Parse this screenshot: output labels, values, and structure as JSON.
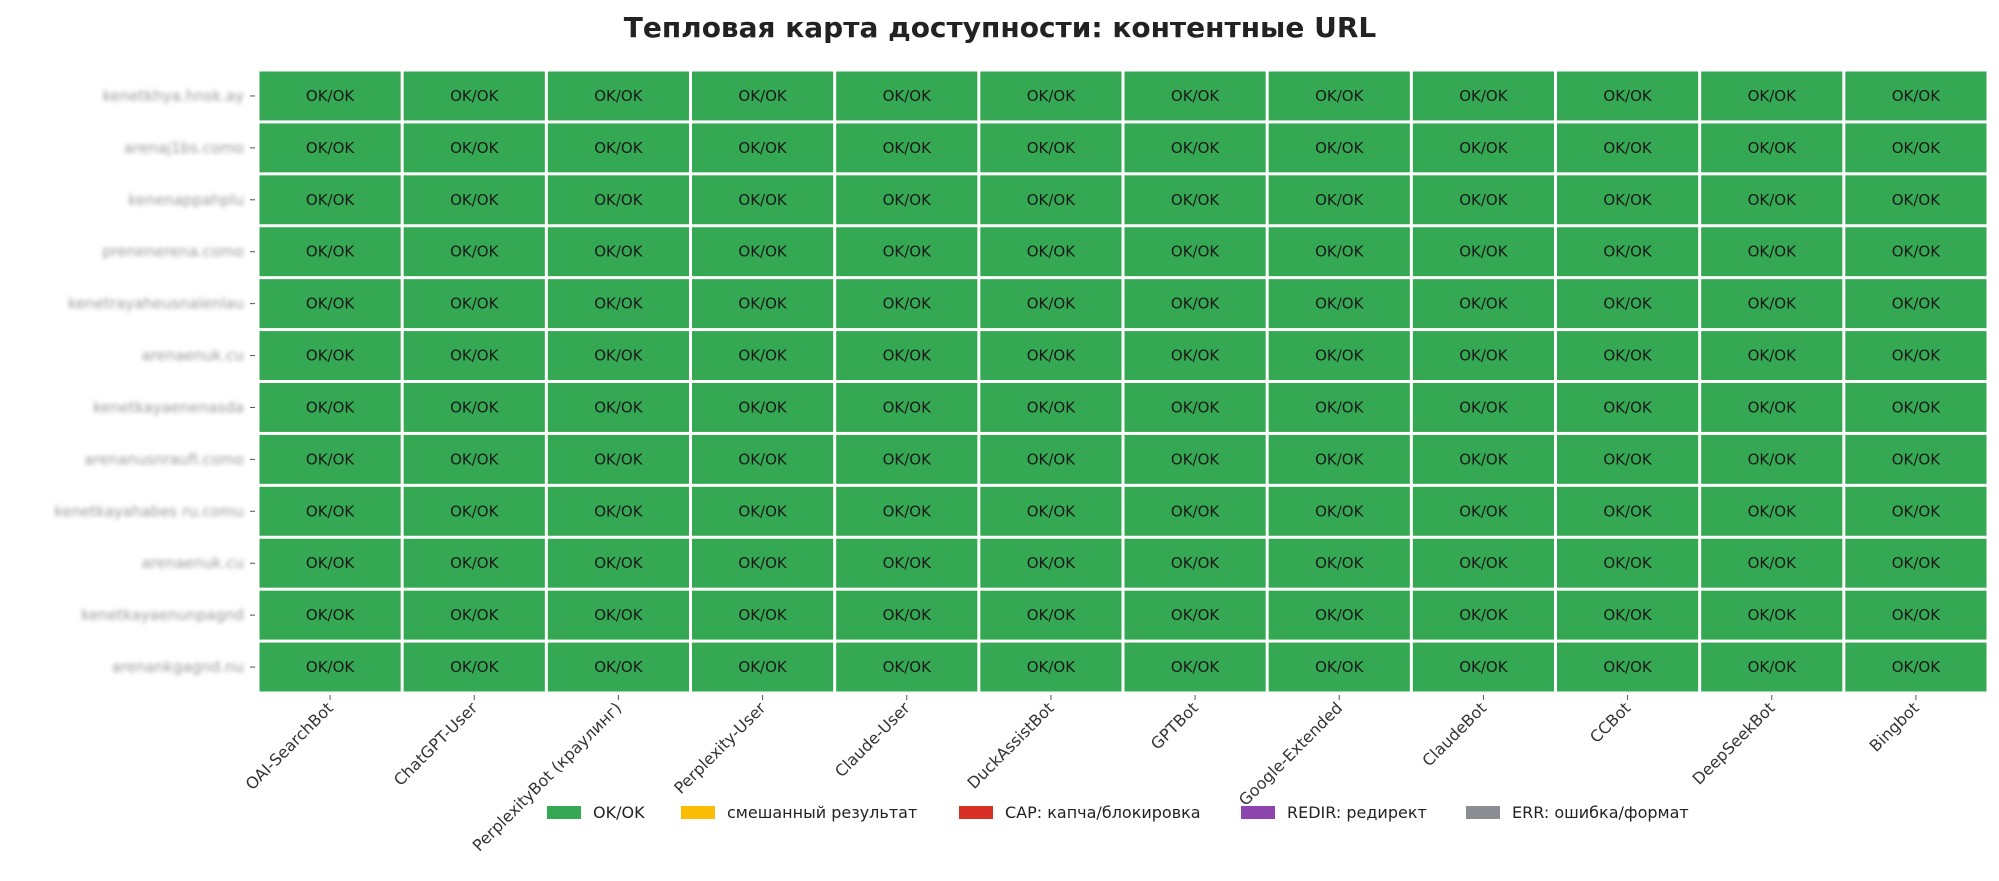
{
  "chart_data": {
    "type": "heatmap",
    "title": "Тепловая карта доступности: контентные URL",
    "columns": [
      "OAI-SearchBot",
      "ChatGPT-User",
      "PerplexityBot (краулинг)",
      "Perplexity-User",
      "Claude-User",
      "DuckAssistBot",
      "GPTBot",
      "Google-Extended",
      "ClaudeBot",
      "CCBot",
      "DeepSeekBot",
      "Bingbot"
    ],
    "rows": [
      "kenetkhya.hnsk.ay",
      "arenaj1bs.como",
      "kenenappahplu",
      "prenenerena.como",
      "kenetrayaheusnalenlau",
      "arenaenuk.cu",
      "kenetkayaenenasda",
      "arenanusnraufi.como",
      "kenetkayahabes ru.comu",
      "arenaenuk.cu",
      "kenetkayaenunpagnd",
      "arenankgagnd.nu"
    ],
    "values": [
      [
        "OK/OK",
        "OK/OK",
        "OK/OK",
        "OK/OK",
        "OK/OK",
        "OK/OK",
        "OK/OK",
        "OK/OK",
        "OK/OK",
        "OK/OK",
        "OK/OK",
        "OK/OK"
      ],
      [
        "OK/OK",
        "OK/OK",
        "OK/OK",
        "OK/OK",
        "OK/OK",
        "OK/OK",
        "OK/OK",
        "OK/OK",
        "OK/OK",
        "OK/OK",
        "OK/OK",
        "OK/OK"
      ],
      [
        "OK/OK",
        "OK/OK",
        "OK/OK",
        "OK/OK",
        "OK/OK",
        "OK/OK",
        "OK/OK",
        "OK/OK",
        "OK/OK",
        "OK/OK",
        "OK/OK",
        "OK/OK"
      ],
      [
        "OK/OK",
        "OK/OK",
        "OK/OK",
        "OK/OK",
        "OK/OK",
        "OK/OK",
        "OK/OK",
        "OK/OK",
        "OK/OK",
        "OK/OK",
        "OK/OK",
        "OK/OK"
      ],
      [
        "OK/OK",
        "OK/OK",
        "OK/OK",
        "OK/OK",
        "OK/OK",
        "OK/OK",
        "OK/OK",
        "OK/OK",
        "OK/OK",
        "OK/OK",
        "OK/OK",
        "OK/OK"
      ],
      [
        "OK/OK",
        "OK/OK",
        "OK/OK",
        "OK/OK",
        "OK/OK",
        "OK/OK",
        "OK/OK",
        "OK/OK",
        "OK/OK",
        "OK/OK",
        "OK/OK",
        "OK/OK"
      ],
      [
        "OK/OK",
        "OK/OK",
        "OK/OK",
        "OK/OK",
        "OK/OK",
        "OK/OK",
        "OK/OK",
        "OK/OK",
        "OK/OK",
        "OK/OK",
        "OK/OK",
        "OK/OK"
      ],
      [
        "OK/OK",
        "OK/OK",
        "OK/OK",
        "OK/OK",
        "OK/OK",
        "OK/OK",
        "OK/OK",
        "OK/OK",
        "OK/OK",
        "OK/OK",
        "OK/OK",
        "OK/OK"
      ],
      [
        "OK/OK",
        "OK/OK",
        "OK/OK",
        "OK/OK",
        "OK/OK",
        "OK/OK",
        "OK/OK",
        "OK/OK",
        "OK/OK",
        "OK/OK",
        "OK/OK",
        "OK/OK"
      ],
      [
        "OK/OK",
        "OK/OK",
        "OK/OK",
        "OK/OK",
        "OK/OK",
        "OK/OK",
        "OK/OK",
        "OK/OK",
        "OK/OK",
        "OK/OK",
        "OK/OK",
        "OK/OK"
      ],
      [
        "OK/OK",
        "OK/OK",
        "OK/OK",
        "OK/OK",
        "OK/OK",
        "OK/OK",
        "OK/OK",
        "OK/OK",
        "OK/OK",
        "OK/OK",
        "OK/OK",
        "OK/OK"
      ],
      [
        "OK/OK",
        "OK/OK",
        "OK/OK",
        "OK/OK",
        "OK/OK",
        "OK/OK",
        "OK/OK",
        "OK/OK",
        "OK/OK",
        "OK/OK",
        "OK/OK",
        "OK/OK"
      ]
    ],
    "categories_legend": [
      {
        "key": "OK",
        "label": "OK/OK",
        "color": "#34a853"
      },
      {
        "key": "MIX",
        "label": "смешанный результат",
        "color": "#fbbc04"
      },
      {
        "key": "CAP",
        "label": "CAP: капча/блокировка",
        "color": "#d93025"
      },
      {
        "key": "REDIR",
        "label": "REDIR: редирект",
        "color": "#8e44ad"
      },
      {
        "key": "ERR",
        "label": "ERR: ошибка/формат",
        "color": "#8a8d91"
      }
    ],
    "cell_color": "#34a853",
    "grid_color": "#ffffff",
    "legend_position": "bottom-center"
  }
}
